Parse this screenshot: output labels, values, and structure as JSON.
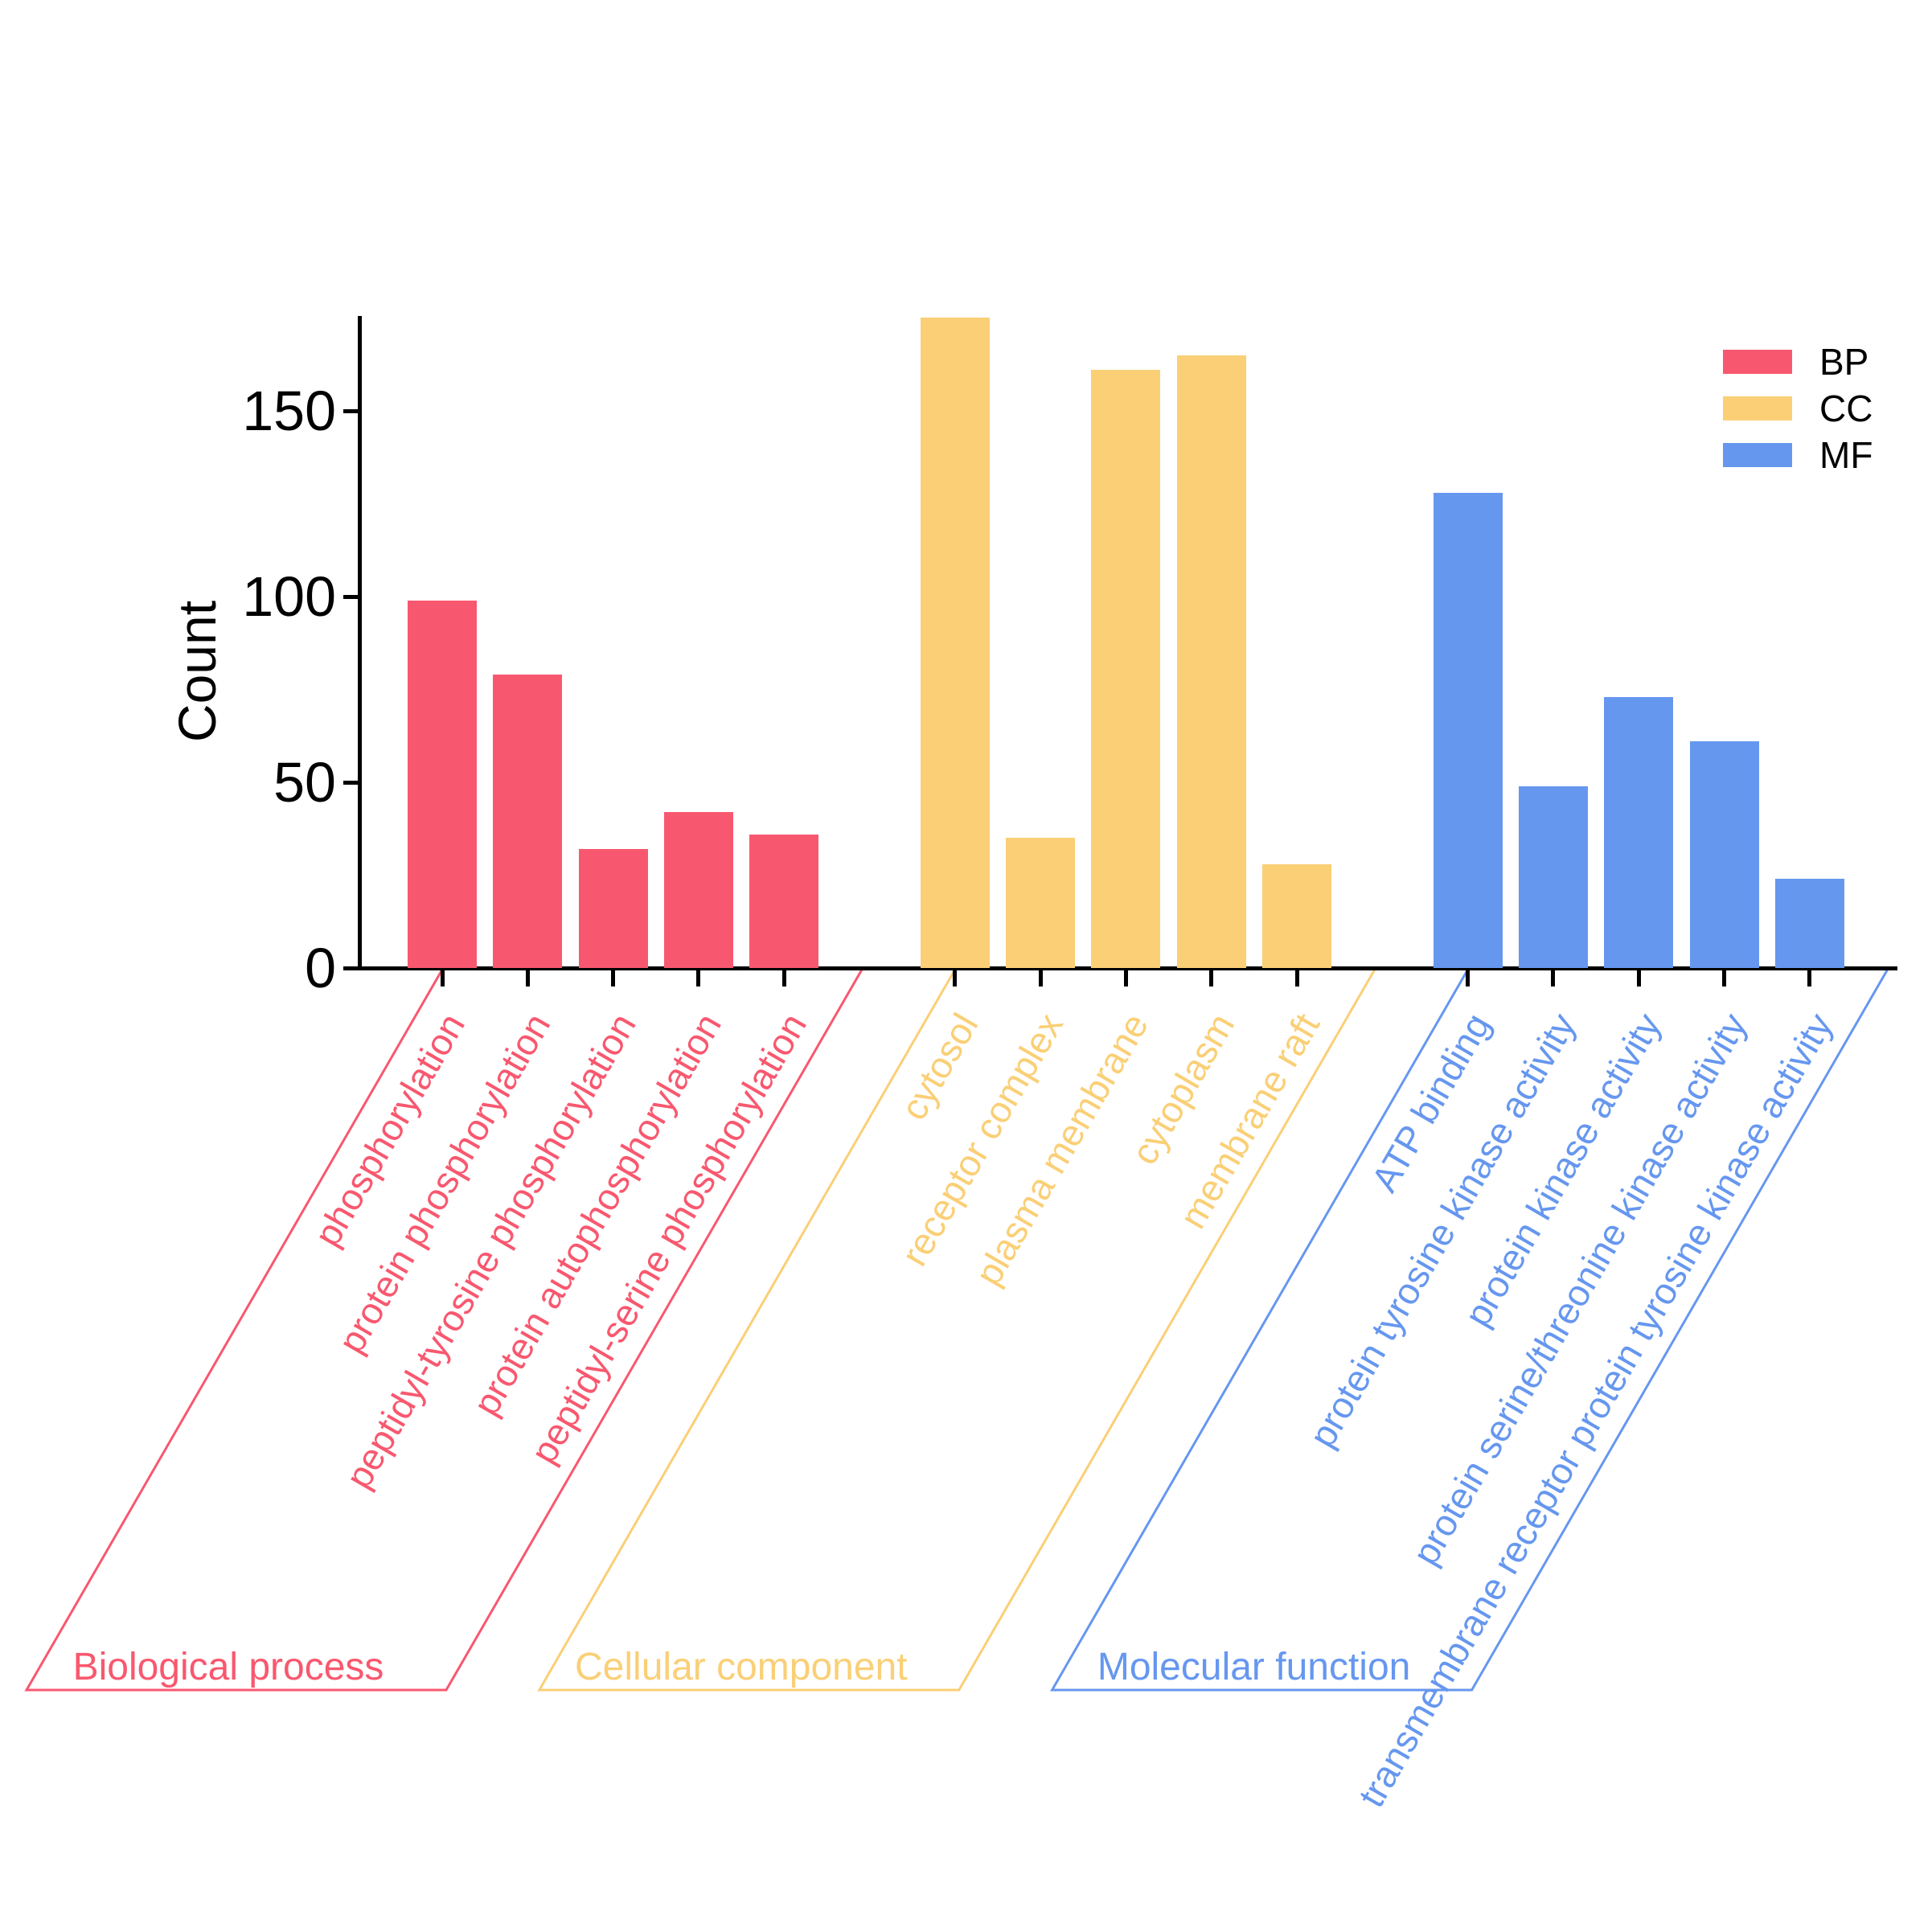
{
  "chart_data": {
    "type": "bar",
    "title": "",
    "xlabel": "",
    "ylabel": "Count",
    "ylim": [
      0,
      178
    ],
    "yticks": [
      "0",
      "50",
      "100",
      "150"
    ],
    "ytick_values": [
      0,
      50,
      100,
      150
    ],
    "grid": false,
    "legend_position": "top-right",
    "legend": [
      {
        "label": "BP",
        "color": "#F8586F"
      },
      {
        "label": "CC",
        "color": "#FACF76"
      },
      {
        "label": "MF",
        "color": "#6697EF"
      }
    ],
    "groups": [
      {
        "id": "BP",
        "name": "Biological process",
        "color": "#F8586F",
        "categories": [
          "phosphorylation",
          "protein phosphorylation",
          "peptidyl-tyrosine phosphorylation",
          "protein autophosphorylation",
          "peptidyl-serine phosphorylation"
        ],
        "values": [
          99,
          79,
          32,
          42,
          36
        ]
      },
      {
        "id": "CC",
        "name": "Cellular component",
        "color": "#FACF76",
        "categories": [
          "cytosol",
          "receptor complex",
          "plasma membrane",
          "cytoplasm",
          "membrane raft"
        ],
        "values": [
          175,
          35,
          161,
          165,
          28
        ]
      },
      {
        "id": "MF",
        "name": "Molecular function",
        "color": "#6697EF",
        "categories": [
          "ATP binding",
          "protein tyrosine kinase activity",
          "protein kinase activity",
          "protein serine/threonine kinase activity",
          "transmembrane receptor protein tyrosine kinase activity"
        ],
        "values": [
          128,
          49,
          73,
          61,
          24
        ]
      }
    ]
  }
}
